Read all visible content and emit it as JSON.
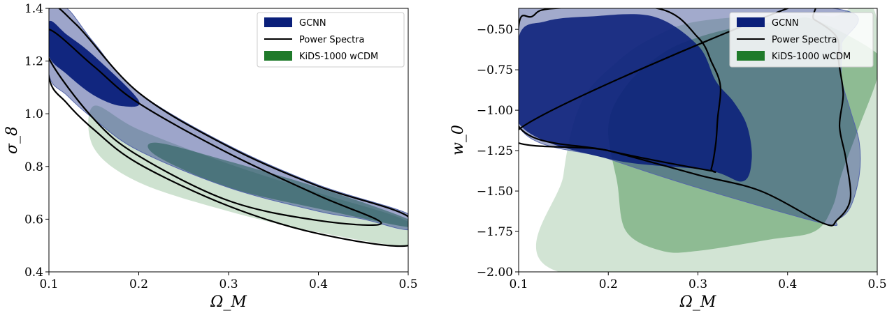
{
  "chart_data": [
    {
      "type": "contour",
      "xlabel": "Ω_M",
      "ylabel": "σ_8",
      "xlim": [
        0.1,
        0.5
      ],
      "ylim": [
        0.4,
        1.4
      ],
      "x_ticks": [
        "0.1",
        "0.2",
        "0.3",
        "0.4",
        "0.5"
      ],
      "y_ticks": [
        "0.4",
        "0.6",
        "0.8",
        "1.0",
        "1.2",
        "1.4"
      ],
      "legend": {
        "placement": "top-right",
        "entries": [
          {
            "label": "GCNN",
            "style": "patch",
            "color": "#0a1f7a"
          },
          {
            "label": "Power Spectra",
            "style": "line",
            "color": "#000000"
          },
          {
            "label": "KiDS-1000 wCDM",
            "style": "patch",
            "color": "#1f7a2a"
          }
        ]
      },
      "series": [
        {
          "name": "KiDS-1000 wCDM",
          "level": "95%",
          "fill": "#1f7a2a",
          "opacity": 0.22,
          "points": [
            [
              0.15,
              1.03
            ],
            [
              0.2,
              0.94
            ],
            [
              0.3,
              0.81
            ],
            [
              0.4,
              0.7
            ],
            [
              0.5,
              0.59
            ],
            [
              0.5,
              0.5
            ],
            [
              0.4,
              0.55
            ],
            [
              0.3,
              0.63
            ],
            [
              0.2,
              0.74
            ],
            [
              0.15,
              0.87
            ]
          ]
        },
        {
          "name": "KiDS-1000 wCDM",
          "level": "68%",
          "fill": "#1f7a2a",
          "opacity": 0.5,
          "points": [
            [
              0.22,
              0.89
            ],
            [
              0.3,
              0.82
            ],
            [
              0.4,
              0.72
            ],
            [
              0.5,
              0.6
            ],
            [
              0.5,
              0.57
            ],
            [
              0.4,
              0.64
            ],
            [
              0.3,
              0.72
            ],
            [
              0.22,
              0.84
            ]
          ]
        },
        {
          "name": "GCNN",
          "level": "95%",
          "fill": "#0a1f7a",
          "opacity": 0.4,
          "edge": "#5566aa",
          "points": [
            [
              0.1,
              1.4
            ],
            [
              0.12,
              1.4
            ],
            [
              0.15,
              1.27
            ],
            [
              0.2,
              1.08
            ],
            [
              0.3,
              0.88
            ],
            [
              0.4,
              0.73
            ],
            [
              0.5,
              0.62
            ],
            [
              0.5,
              0.56
            ],
            [
              0.45,
              0.6
            ],
            [
              0.4,
              0.63
            ],
            [
              0.3,
              0.72
            ],
            [
              0.2,
              0.86
            ],
            [
              0.15,
              0.98
            ],
            [
              0.12,
              1.07
            ],
            [
              0.1,
              1.15
            ]
          ]
        },
        {
          "name": "GCNN",
          "level": "68%",
          "fill": "#0a1f7a",
          "opacity": 0.95,
          "points": [
            [
              0.1,
              1.35
            ],
            [
              0.12,
              1.3
            ],
            [
              0.15,
              1.22
            ],
            [
              0.2,
              1.05
            ],
            [
              0.18,
              1.03
            ],
            [
              0.15,
              1.07
            ],
            [
              0.12,
              1.15
            ],
            [
              0.1,
              1.22
            ]
          ]
        },
        {
          "name": "Power Spectra",
          "level": "95%",
          "stroke": "#000000",
          "points": [
            [
              0.1,
              1.4
            ],
            [
              0.13,
              1.34
            ],
            [
              0.2,
              1.08
            ],
            [
              0.3,
              0.875
            ],
            [
              0.4,
              0.725
            ],
            [
              0.5,
              0.61
            ],
            [
              0.5,
              0.5
            ],
            [
              0.4,
              0.545
            ],
            [
              0.3,
              0.65
            ],
            [
              0.2,
              0.81
            ],
            [
              0.15,
              0.94
            ],
            [
              0.12,
              1.04
            ],
            [
              0.1,
              1.14
            ]
          ]
        },
        {
          "name": "Power Spectra",
          "level": "68%",
          "stroke": "#000000",
          "points": [
            [
              0.1,
              1.32
            ],
            [
              0.15,
              1.18
            ],
            [
              0.2,
              1.04
            ],
            [
              0.3,
              0.85
            ],
            [
              0.4,
              0.69
            ],
            [
              0.47,
              0.585
            ],
            [
              0.4,
              0.595
            ],
            [
              0.3,
              0.67
            ],
            [
              0.2,
              0.84
            ],
            [
              0.15,
              0.98
            ],
            [
              0.1,
              1.21
            ]
          ]
        }
      ]
    },
    {
      "type": "contour",
      "xlabel": "Ω_M",
      "ylabel": "w_0",
      "xlim": [
        0.1,
        0.5
      ],
      "ylim": [
        -2.0,
        -0.37
      ],
      "x_ticks": [
        "0.1",
        "0.2",
        "0.3",
        "0.4",
        "0.5"
      ],
      "y_ticks": [
        "−0.50",
        "−0.75",
        "−1.00",
        "−1.25",
        "−1.50",
        "−1.75",
        "−2.00"
      ],
      "legend": {
        "placement": "top-right",
        "entries": [
          {
            "label": "GCNN",
            "style": "patch",
            "color": "#0a1f7a"
          },
          {
            "label": "Power Spectra",
            "style": "line",
            "color": "#000000"
          },
          {
            "label": "KiDS-1000 wCDM",
            "style": "patch",
            "color": "#1f7a2a"
          }
        ]
      },
      "series": [
        {
          "name": "KiDS-1000 wCDM",
          "level": "95%",
          "fill": "#1f7a2a",
          "opacity": 0.2,
          "points": [
            [
              0.145,
              -2.0
            ],
            [
              0.15,
              -1.4
            ],
            [
              0.17,
              -0.95
            ],
            [
              0.21,
              -0.7
            ],
            [
              0.25,
              -0.55
            ],
            [
              0.3,
              -0.45
            ],
            [
              0.4,
              -0.41
            ],
            [
              0.45,
              -0.42
            ],
            [
              0.5,
              -0.45
            ],
            [
              0.5,
              -2.0
            ]
          ]
        },
        {
          "name": "KiDS-1000 wCDM",
          "level": "68%",
          "fill": "#1f7a2a",
          "opacity": 0.38,
          "points": [
            [
              0.21,
              -1.45
            ],
            [
              0.2,
              -1.1
            ],
            [
              0.22,
              -0.85
            ],
            [
              0.26,
              -0.65
            ],
            [
              0.3,
              -0.55
            ],
            [
              0.35,
              -0.48
            ],
            [
              0.4,
              -0.45
            ],
            [
              0.43,
              -0.44
            ],
            [
              0.5,
              -0.65
            ],
            [
              0.5,
              -0.8
            ],
            [
              0.48,
              -1.1
            ],
            [
              0.46,
              -1.4
            ],
            [
              0.45,
              -1.6
            ],
            [
              0.43,
              -1.75
            ],
            [
              0.38,
              -1.8
            ],
            [
              0.3,
              -1.87
            ],
            [
              0.26,
              -1.87
            ],
            [
              0.22,
              -1.75
            ]
          ]
        },
        {
          "name": "GCNN",
          "level": "95%",
          "fill": "#0a1f7a",
          "opacity": 0.38,
          "edge": "#5566aa",
          "points": [
            [
              0.1,
              -0.37
            ],
            [
              0.45,
              -0.37
            ],
            [
              0.46,
              -0.6
            ],
            [
              0.46,
              -0.8
            ],
            [
              0.47,
              -1.0
            ],
            [
              0.48,
              -1.2
            ],
            [
              0.48,
              -1.4
            ],
            [
              0.47,
              -1.6
            ],
            [
              0.455,
              -1.68
            ],
            [
              0.44,
              -1.7
            ],
            [
              0.3,
              -1.48
            ],
            [
              0.2,
              -1.3
            ],
            [
              0.1,
              -1.1
            ]
          ]
        },
        {
          "name": "GCNN",
          "level": "68%",
          "fill": "#0a1f7a",
          "opacity": 0.88,
          "points": [
            [
              0.1,
              -0.55
            ],
            [
              0.13,
              -0.45
            ],
            [
              0.18,
              -0.42
            ],
            [
              0.25,
              -0.42
            ],
            [
              0.3,
              -0.6
            ],
            [
              0.32,
              -0.82
            ],
            [
              0.34,
              -0.95
            ],
            [
              0.355,
              -1.1
            ],
            [
              0.36,
              -1.3
            ],
            [
              0.35,
              -1.44
            ],
            [
              0.31,
              -1.37
            ],
            [
              0.2,
              -1.3
            ],
            [
              0.1,
              -1.08
            ]
          ]
        },
        {
          "name": "Power Spectra",
          "level": "95%",
          "stroke": "#000000",
          "points": [
            [
              0.1,
              -1.12
            ],
            [
              0.2,
              -1.25
            ],
            [
              0.3,
              -1.4
            ],
            [
              0.37,
              -1.5
            ],
            [
              0.44,
              -1.7
            ],
            [
              0.455,
              -1.68
            ],
            [
              0.47,
              -1.55
            ],
            [
              0.465,
              -1.3
            ],
            [
              0.458,
              -1.1
            ],
            [
              0.462,
              -0.9
            ],
            [
              0.457,
              -0.7
            ],
            [
              0.455,
              -0.55
            ],
            [
              0.43,
              -0.44
            ],
            [
              0.4,
              -0.37
            ]
          ]
        },
        {
          "name": "Power Spectra",
          "level": "68%",
          "stroke": "#000000",
          "points": [
            [
              0.1,
              -0.48
            ],
            [
              0.115,
              -0.42
            ],
            [
              0.14,
              -0.37
            ],
            [
              0.255,
              -0.37
            ],
            [
              0.3,
              -0.55
            ],
            [
              0.315,
              -0.7
            ],
            [
              0.325,
              -0.85
            ],
            [
              0.322,
              -1.05
            ],
            [
              0.32,
              -1.2
            ],
            [
              0.315,
              -1.36
            ],
            [
              0.31,
              -1.37
            ],
            [
              0.2,
              -1.25
            ],
            [
              0.1,
              -1.1
            ]
          ]
        }
      ]
    }
  ]
}
